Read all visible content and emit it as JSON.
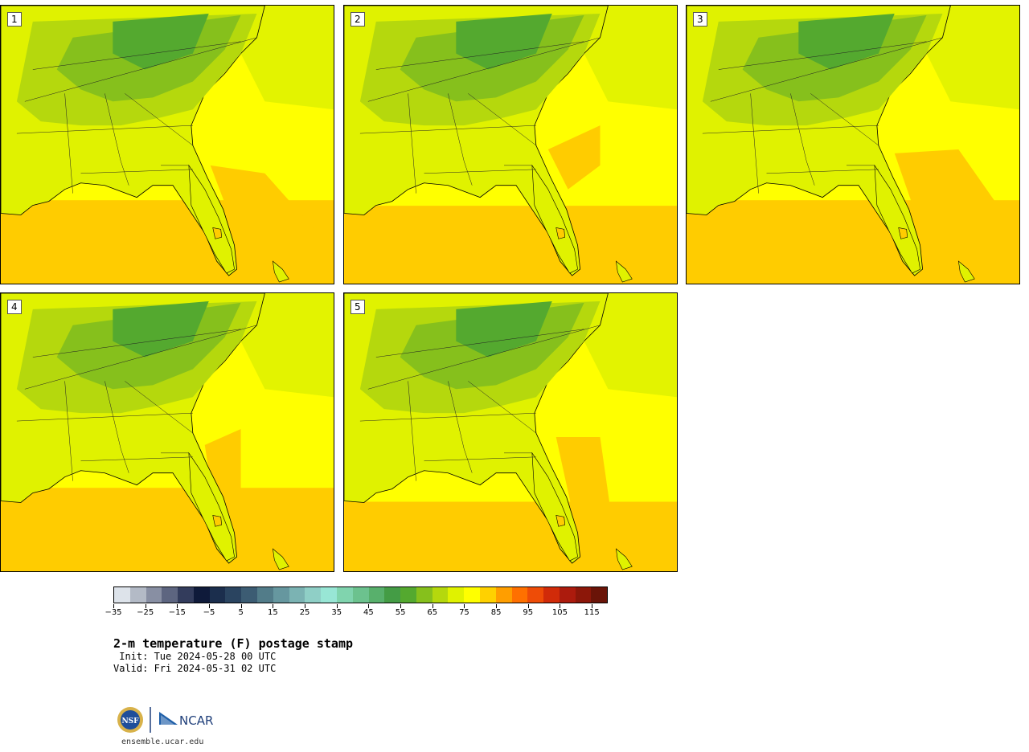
{
  "panels": [
    {
      "label": "1"
    },
    {
      "label": "2"
    },
    {
      "label": "3"
    },
    {
      "label": "4"
    },
    {
      "label": "5"
    }
  ],
  "colorbar": {
    "colors": [
      "#dde3ea",
      "#b3bac6",
      "#888fa3",
      "#5d6580",
      "#333c5c",
      "#0f1a3a",
      "#1b2e4d",
      "#2a4460",
      "#3c5c73",
      "#527c89",
      "#66979f",
      "#7bb3b3",
      "#8fcfc6",
      "#98e6d5",
      "#80d4ae",
      "#6cc28e",
      "#58b06c",
      "#449c45",
      "#54a92f",
      "#86c01c",
      "#b5d80d",
      "#e0f200",
      "#ffff00",
      "#ffd100",
      "#ff9e00",
      "#ff7000",
      "#ee4c07",
      "#d12b09",
      "#ac1b0d",
      "#8c1709",
      "#6a1408"
    ],
    "ticks": [
      "−35",
      "−25",
      "−15",
      "−5",
      "5",
      "15",
      "25",
      "35",
      "45",
      "55",
      "65",
      "75",
      "85",
      "95",
      "105",
      "115"
    ]
  },
  "title": "2-m temperature (F) postage stamp",
  "init": " Init: Tue 2024-05-28 00 UTC",
  "valid": "Valid: Fri 2024-05-31 02 UTC",
  "logos": {
    "nsf": "NSF",
    "ncar": "NCAR"
  },
  "site": "ensemble.ucar.edu",
  "map_colors": {
    "ocean_warm": "#ffcc00",
    "ocean": "#ffff00",
    "land_warm": "#e0f200",
    "land_mid": "#b5d80d",
    "land_cool": "#86c01c",
    "land_cold": "#54a92f"
  }
}
